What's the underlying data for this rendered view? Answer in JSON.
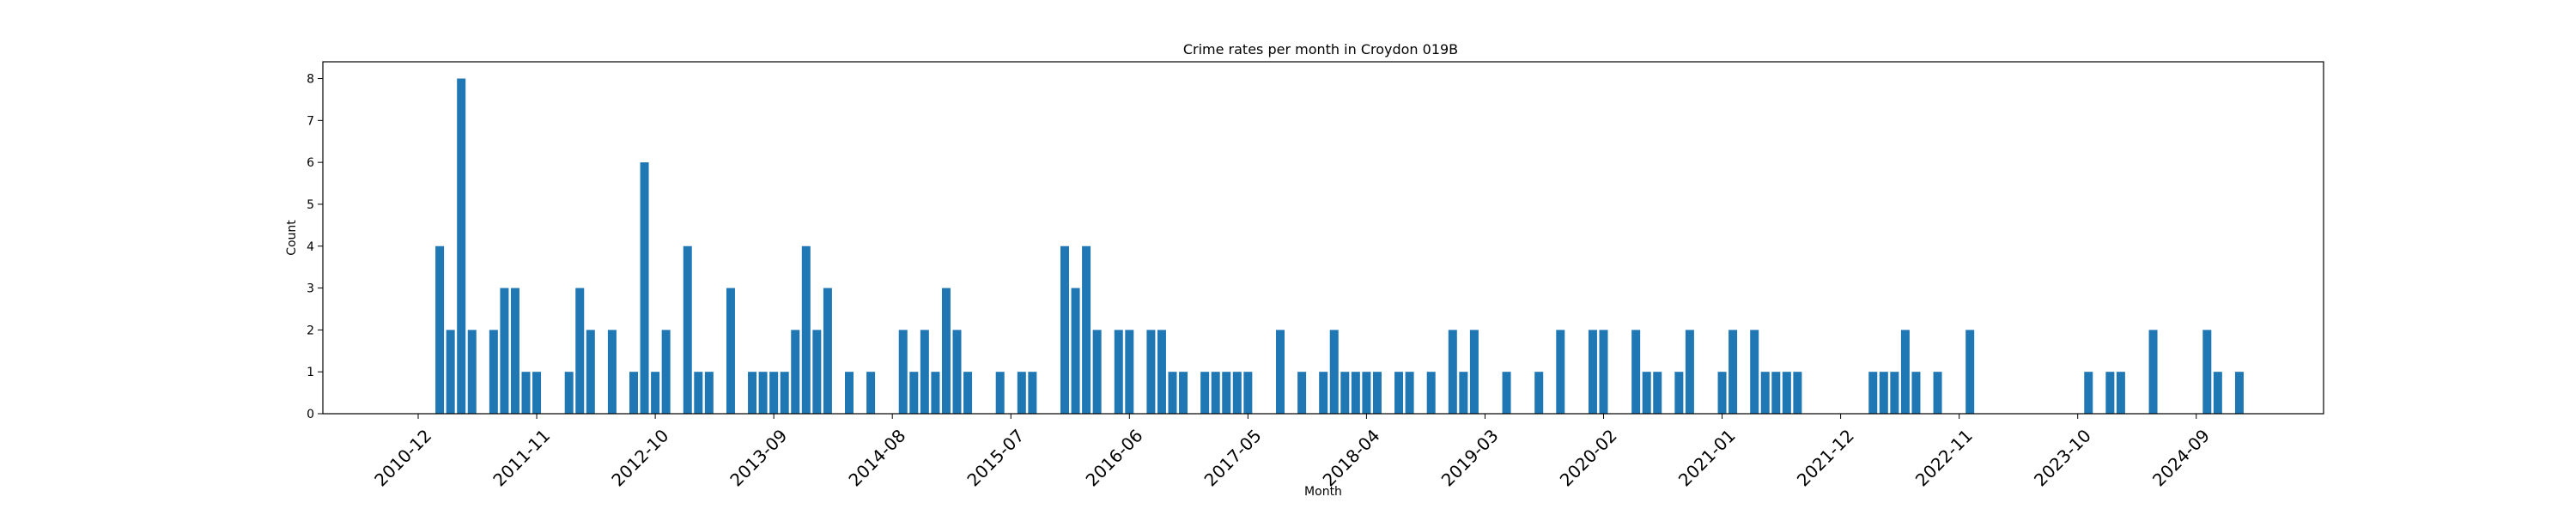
{
  "chart_data": {
    "type": "bar",
    "title": "Crime rates per month in Croydon 019B",
    "xlabel": "Month",
    "ylabel": "Count",
    "ylim": [
      0,
      8.4
    ],
    "y_ticks": [
      0,
      1,
      2,
      3,
      4,
      5,
      6,
      7,
      8
    ],
    "x_tick_labels": [
      "2010-12",
      "2011-11",
      "2012-10",
      "2013-09",
      "2014-08",
      "2015-07",
      "2016-06",
      "2017-05",
      "2018-04",
      "2019-03",
      "2020-02",
      "2021-01",
      "2021-12",
      "2022-11",
      "2023-10",
      "2024-09"
    ],
    "grid": false,
    "bar_color": "#1f77b4",
    "series": [
      {
        "x": [
          "2011-02",
          "2011-03",
          "2011-04",
          "2011-05",
          "2011-07",
          "2011-08",
          "2011-09",
          "2011-10",
          "2011-11",
          "2012-02",
          "2012-03",
          "2012-04",
          "2012-06",
          "2012-08",
          "2012-09",
          "2012-10",
          "2012-11",
          "2013-01",
          "2013-02",
          "2013-03",
          "2013-05",
          "2013-07",
          "2013-08",
          "2013-09",
          "2013-10",
          "2013-11",
          "2013-12",
          "2014-01",
          "2014-02",
          "2014-04",
          "2014-06",
          "2014-09",
          "2014-10",
          "2014-11",
          "2014-12",
          "2015-01",
          "2015-02",
          "2015-03",
          "2015-06",
          "2015-08",
          "2015-09",
          "2015-12",
          "2016-01",
          "2016-02",
          "2016-03",
          "2016-05",
          "2016-06",
          "2016-08",
          "2016-09",
          "2016-10",
          "2016-11",
          "2017-01",
          "2017-02",
          "2017-03",
          "2017-04",
          "2017-05",
          "2017-08",
          "2017-10",
          "2017-12",
          "2018-01",
          "2018-02",
          "2018-03",
          "2018-04",
          "2018-05",
          "2018-07",
          "2018-08",
          "2018-10",
          "2018-12",
          "2019-01",
          "2019-02",
          "2019-05",
          "2019-08",
          "2019-10",
          "2020-01",
          "2020-02",
          "2020-05",
          "2020-06",
          "2020-07",
          "2020-09",
          "2020-10",
          "2021-01",
          "2021-02",
          "2021-04",
          "2021-05",
          "2021-06",
          "2021-07",
          "2021-08",
          "2022-03",
          "2022-04",
          "2022-05",
          "2022-06",
          "2022-07",
          "2022-09",
          "2022-12",
          "2023-11",
          "2024-01",
          "2024-02",
          "2024-05",
          "2024-10",
          "2024-11",
          "2025-01"
        ],
        "values": [
          4,
          2,
          8,
          2,
          2,
          3,
          3,
          1,
          1,
          1,
          3,
          2,
          2,
          1,
          6,
          1,
          2,
          4,
          1,
          1,
          3,
          1,
          1,
          1,
          1,
          2,
          4,
          2,
          3,
          1,
          1,
          2,
          1,
          2,
          1,
          3,
          2,
          1,
          1,
          1,
          1,
          4,
          3,
          4,
          2,
          2,
          2,
          2,
          2,
          1,
          1,
          1,
          1,
          1,
          1,
          1,
          2,
          1,
          1,
          2,
          1,
          1,
          1,
          1,
          1,
          1,
          1,
          2,
          1,
          2,
          1,
          1,
          2,
          2,
          2,
          2,
          1,
          1,
          1,
          2,
          1,
          2,
          2,
          1,
          1,
          1,
          1,
          1,
          1,
          1,
          2,
          1,
          1,
          2,
          1,
          1,
          1,
          2,
          2,
          1,
          1
        ]
      }
    ]
  }
}
